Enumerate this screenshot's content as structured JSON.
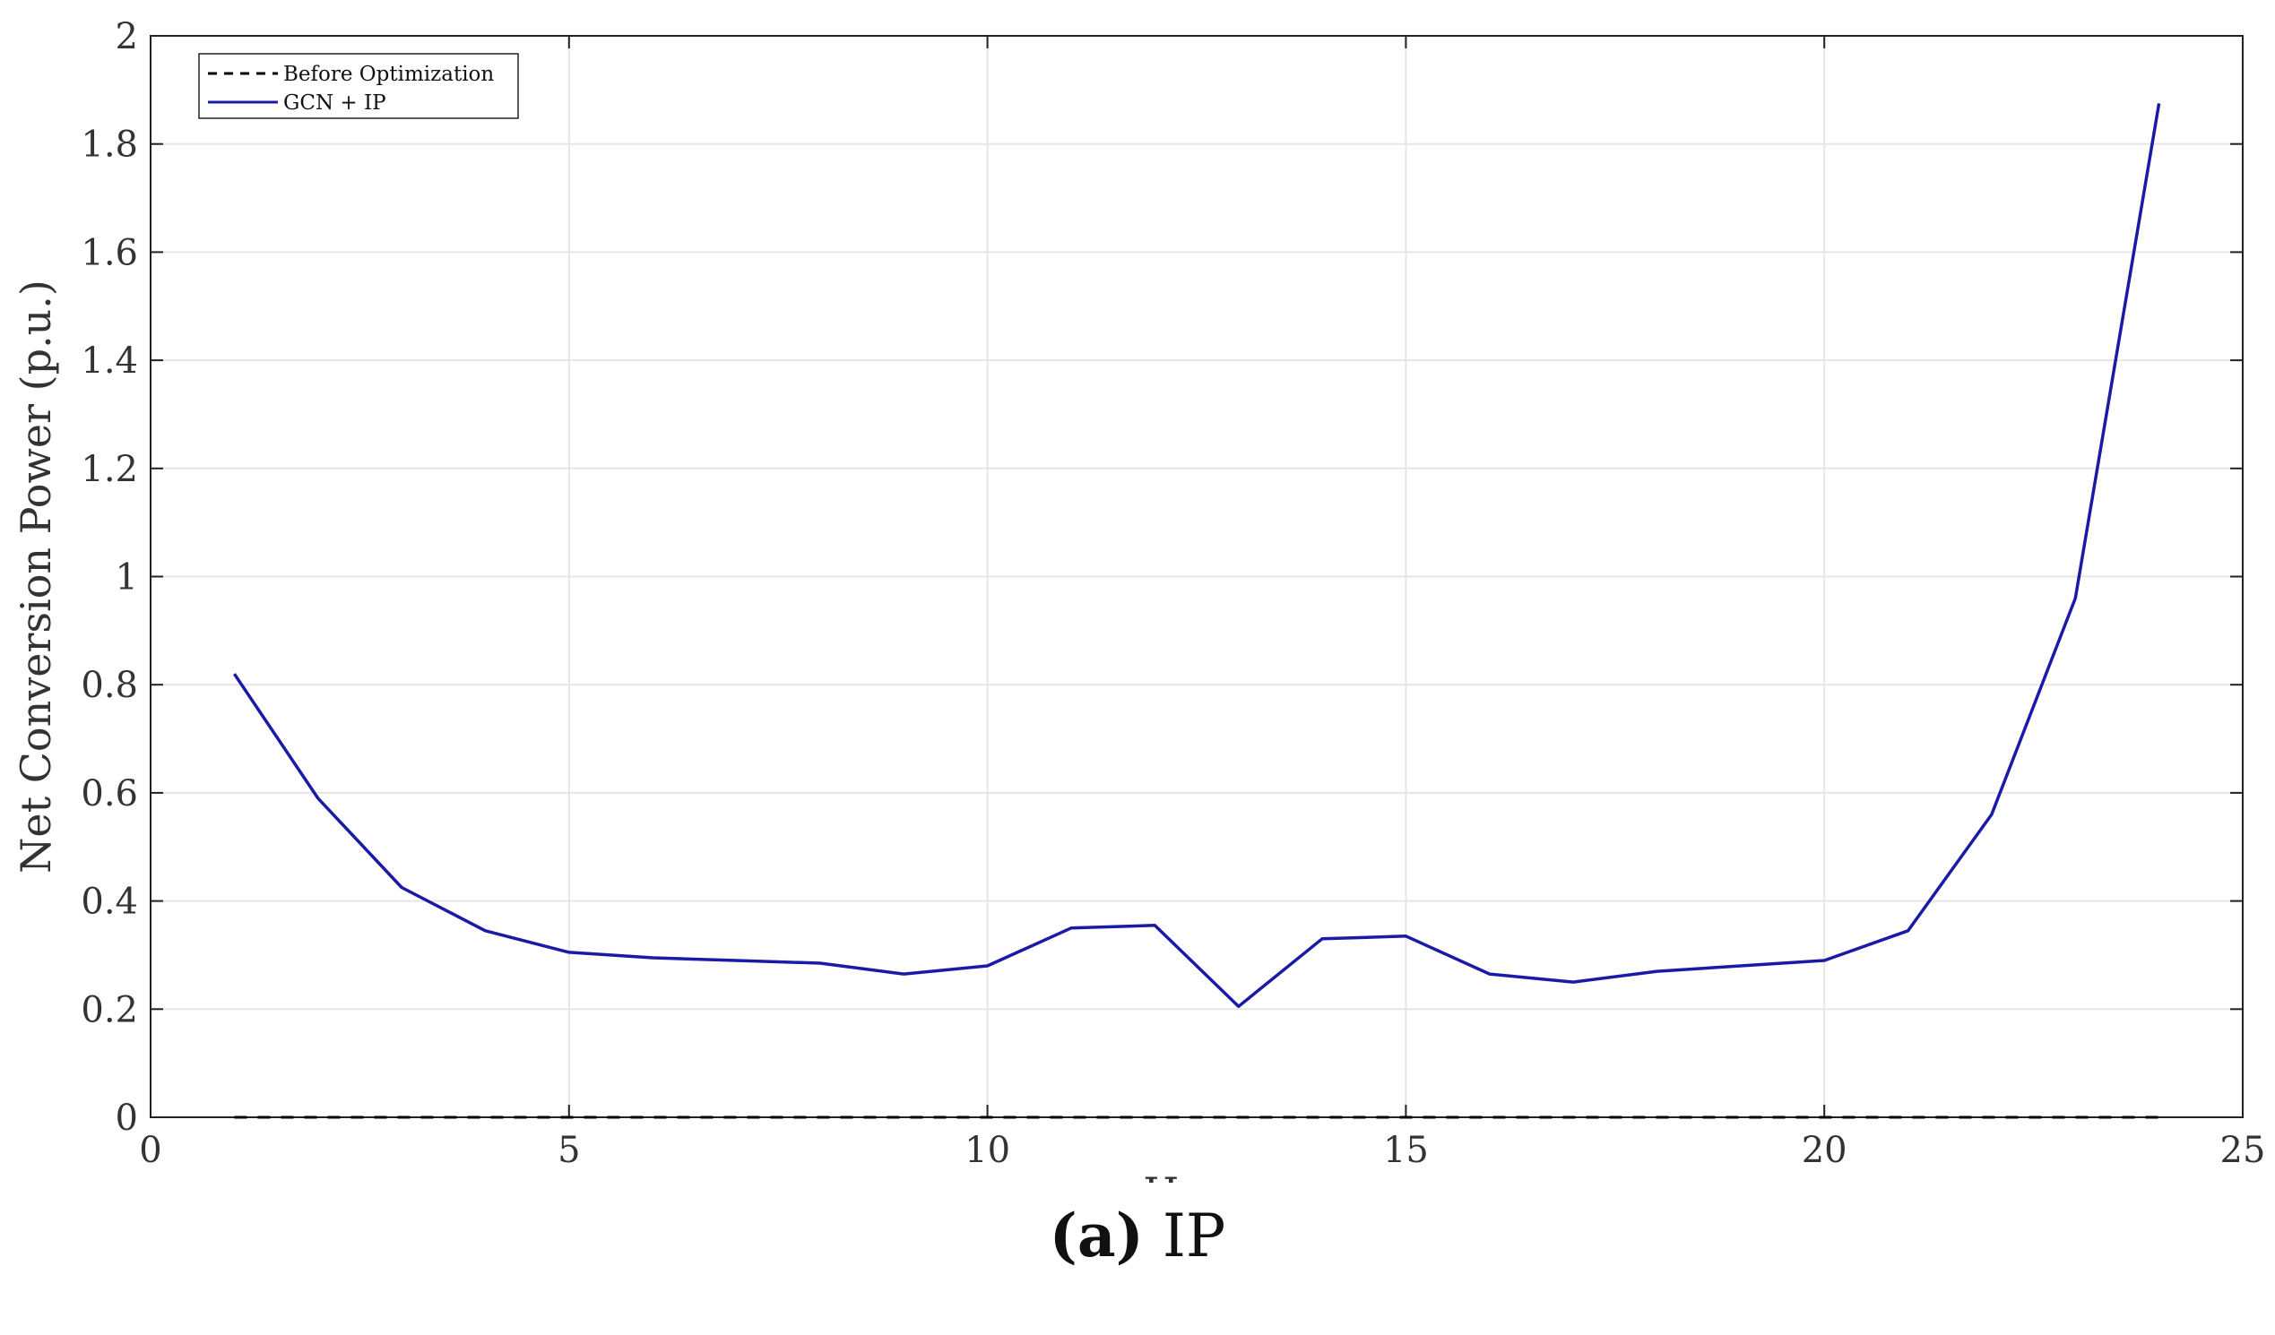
{
  "chart_data": {
    "type": "line",
    "xlabel": "Hour",
    "ylabel": "Net Conversion Power (p.u.)",
    "xlim": [
      0,
      25
    ],
    "ylim": [
      0,
      2
    ],
    "xticks": [
      0,
      5,
      10,
      15,
      20,
      25
    ],
    "yticks": [
      0,
      0.2,
      0.4,
      0.6,
      0.8,
      1,
      1.2,
      1.4,
      1.6,
      1.8,
      2
    ],
    "xtick_labels": [
      "0",
      "5",
      "10",
      "15",
      "20",
      "25"
    ],
    "ytick_labels": [
      "0",
      "0.2",
      "0.4",
      "0.6",
      "0.8",
      "1",
      "1.2",
      "1.4",
      "1.6",
      "1.8",
      "2"
    ],
    "grid": true,
    "legend_position": "top-left",
    "x": [
      1,
      2,
      3,
      4,
      5,
      6,
      7,
      8,
      9,
      10,
      11,
      12,
      13,
      14,
      15,
      16,
      17,
      18,
      19,
      20,
      21,
      22,
      23,
      24
    ],
    "series": [
      {
        "name": "Before Optimization",
        "color": "#000000",
        "style": "dashed",
        "values": [
          0,
          0,
          0,
          0,
          0,
          0,
          0,
          0,
          0,
          0,
          0,
          0,
          0,
          0,
          0,
          0,
          0,
          0,
          0,
          0,
          0,
          0,
          0,
          0
        ]
      },
      {
        "name": "GCN + IP",
        "color": "#1a1aa6",
        "style": "solid",
        "values": [
          0.82,
          0.59,
          0.425,
          0.345,
          0.305,
          0.295,
          0.29,
          0.285,
          0.265,
          0.28,
          0.35,
          0.355,
          0.205,
          0.33,
          0.335,
          0.265,
          0.25,
          0.27,
          0.28,
          0.29,
          0.345,
          0.56,
          0.96,
          1.875
        ]
      }
    ]
  },
  "caption": {
    "label": "(a)",
    "text": "IP"
  }
}
